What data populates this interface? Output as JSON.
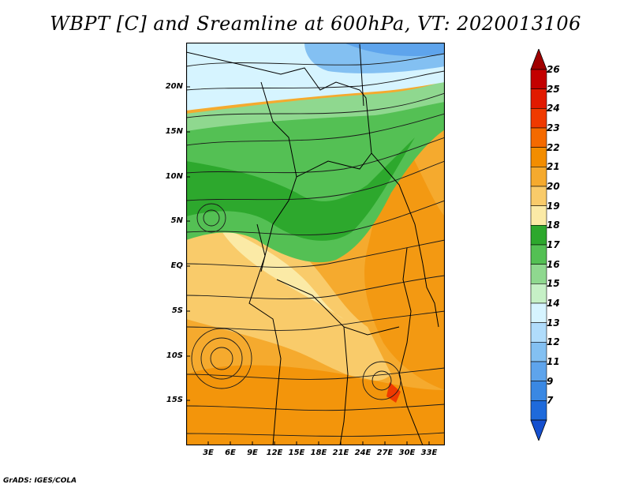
{
  "title": "WBPT [C] and Sreamline at 600hPa, VT: 2020013106",
  "credit": "GrADS: IGES/COLA",
  "map": {
    "lat_labels": [
      "20N",
      "15N",
      "10N",
      "5N",
      "EQ",
      "5S",
      "10S",
      "15S"
    ],
    "lon_labels": [
      "3E",
      "6E",
      "9E",
      "12E",
      "15E",
      "18E",
      "21E",
      "24E",
      "27E",
      "30E",
      "33E"
    ]
  },
  "colorbar": {
    "labels": [
      "26",
      "25",
      "24",
      "23",
      "22",
      "21",
      "20",
      "19",
      "18",
      "17",
      "16",
      "15",
      "14",
      "13",
      "12",
      "11",
      "9",
      "7"
    ],
    "colors": [
      "#c30000",
      "#e11a00",
      "#ef3a00",
      "#f46a00",
      "#f28d00",
      "#f5aa2e",
      "#f9cb6a",
      "#fbeaa6",
      "#2da82d",
      "#54c054",
      "#8fd88f",
      "#c6f0c6",
      "#d6f4ff",
      "#b0dcfb",
      "#83c0f2",
      "#5ea4ec",
      "#3a88e3",
      "#1e6adb"
    ],
    "arrow_top_color": "#a00000",
    "arrow_bottom_color": "#1550cf"
  }
}
